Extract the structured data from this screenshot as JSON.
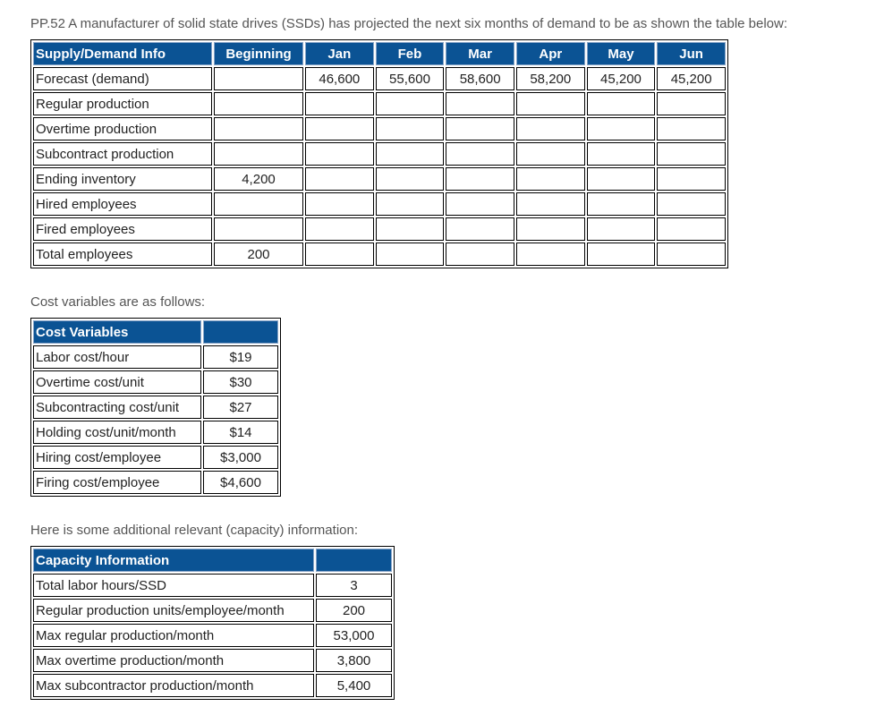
{
  "intro": "PP.52 A manufacturer of solid state drives (SSDs) has projected the next six months of demand to be as shown the table below:",
  "supply": {
    "headers": [
      "Supply/Demand Info",
      "Beginning",
      "Jan",
      "Feb",
      "Mar",
      "Apr",
      "May",
      "Jun"
    ],
    "rows": [
      {
        "label": "Forecast (demand)",
        "values": [
          "",
          "46,600",
          "55,600",
          "58,600",
          "58,200",
          "45,200",
          "45,200"
        ]
      },
      {
        "label": "Regular production",
        "values": [
          "",
          "",
          "",
          "",
          "",
          "",
          ""
        ]
      },
      {
        "label": "Overtime production",
        "values": [
          "",
          "",
          "",
          "",
          "",
          "",
          ""
        ]
      },
      {
        "label": "Subcontract production",
        "values": [
          "",
          "",
          "",
          "",
          "",
          "",
          ""
        ]
      },
      {
        "label": "Ending inventory",
        "values": [
          "4,200",
          "",
          "",
          "",
          "",
          "",
          ""
        ]
      },
      {
        "label": "Hired employees",
        "values": [
          "",
          "",
          "",
          "",
          "",
          "",
          ""
        ]
      },
      {
        "label": "Fired employees",
        "values": [
          "",
          "",
          "",
          "",
          "",
          "",
          ""
        ]
      },
      {
        "label": "Total employees",
        "values": [
          "200",
          "",
          "",
          "",
          "",
          "",
          ""
        ]
      }
    ]
  },
  "cost_intro": "Cost variables are as follows:",
  "cost": {
    "header": "Cost Variables",
    "rows": [
      {
        "label": "Labor cost/hour",
        "value": "$19"
      },
      {
        "label": "Overtime cost/unit",
        "value": "$30"
      },
      {
        "label": "Subcontracting cost/unit",
        "value": "$27"
      },
      {
        "label": "Holding cost/unit/month",
        "value": "$14"
      },
      {
        "label": "Hiring cost/employee",
        "value": "$3,000"
      },
      {
        "label": "Firing cost/employee",
        "value": "$4,600"
      }
    ]
  },
  "capacity_intro": "Here is some additional relevant (capacity) information:",
  "capacity": {
    "header": "Capacity Information",
    "rows": [
      {
        "label": "Total labor hours/SSD",
        "value": "3"
      },
      {
        "label": "Regular production units/employee/month",
        "value": "200"
      },
      {
        "label": "Max regular production/month",
        "value": "53,000"
      },
      {
        "label": "Max overtime production/month",
        "value": "3,800"
      },
      {
        "label": "Max subcontractor production/month",
        "value": "5,400"
      }
    ]
  }
}
